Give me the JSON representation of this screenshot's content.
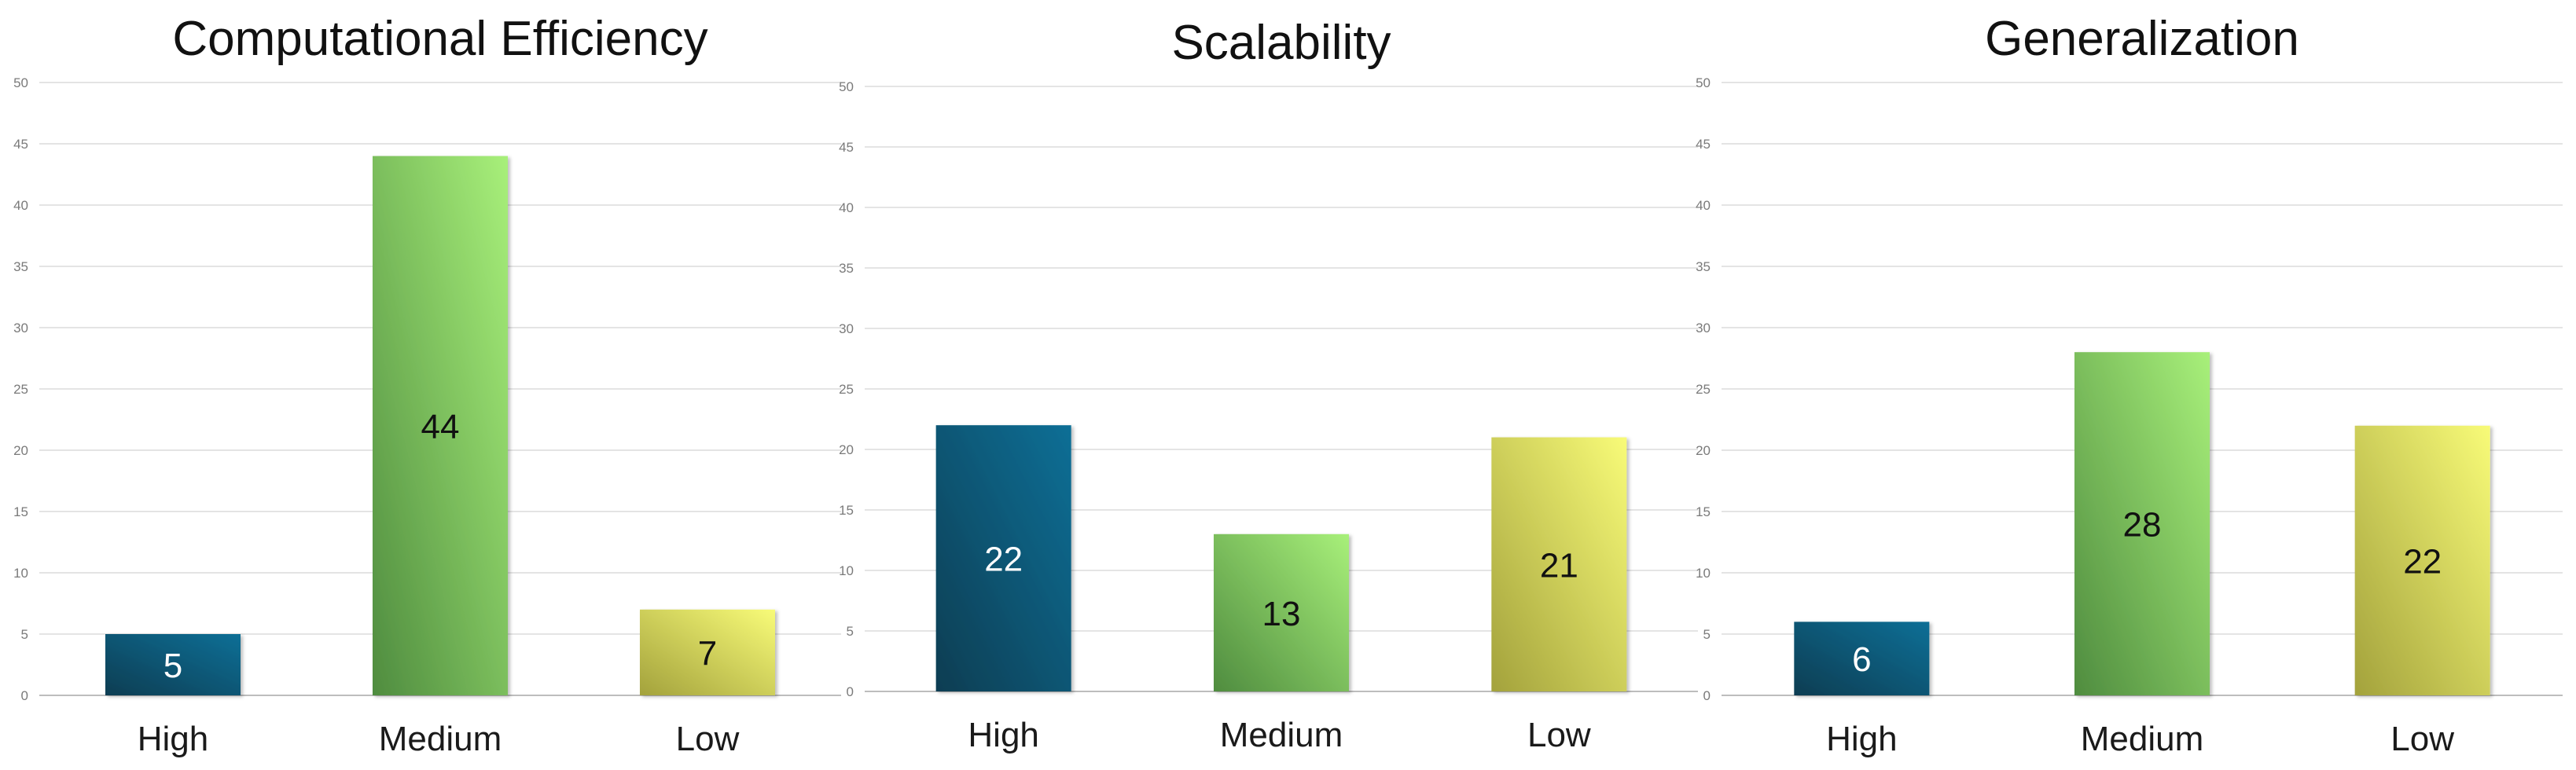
{
  "palette": {
    "High": [
      "#073d52",
      "#0b6f96"
    ],
    "Medium": [
      "#4f8c3f",
      "#a8f07a"
    ],
    "Low": [
      "#a3a23c",
      "#f8fb78"
    ],
    "label_on_dark": "#ffffff",
    "label_on_light": "#111111"
  },
  "chart_data": [
    {
      "type": "bar",
      "title": "Computational Efficiency",
      "categories": [
        "High",
        "Medium",
        "Low"
      ],
      "values": [
        5,
        44,
        7
      ],
      "ylim": [
        0,
        50
      ],
      "yticks": [
        0,
        5,
        10,
        15,
        20,
        25,
        30,
        35,
        40,
        45,
        50
      ],
      "grid": true,
      "xlabel": "",
      "ylabel": ""
    },
    {
      "type": "bar",
      "title": "Scalability",
      "categories": [
        "High",
        "Medium",
        "Low"
      ],
      "values": [
        22,
        13,
        21
      ],
      "ylim": [
        0,
        50
      ],
      "yticks": [
        0,
        5,
        10,
        15,
        20,
        25,
        30,
        35,
        40,
        45,
        50
      ],
      "grid": true,
      "xlabel": "",
      "ylabel": ""
    },
    {
      "type": "bar",
      "title": "Generalization",
      "categories": [
        "High",
        "Medium",
        "Low"
      ],
      "values": [
        6,
        28,
        22
      ],
      "ylim": [
        0,
        50
      ],
      "yticks": [
        0,
        5,
        10,
        15,
        20,
        25,
        30,
        35,
        40,
        45,
        50
      ],
      "grid": true,
      "xlabel": "",
      "ylabel": ""
    }
  ]
}
